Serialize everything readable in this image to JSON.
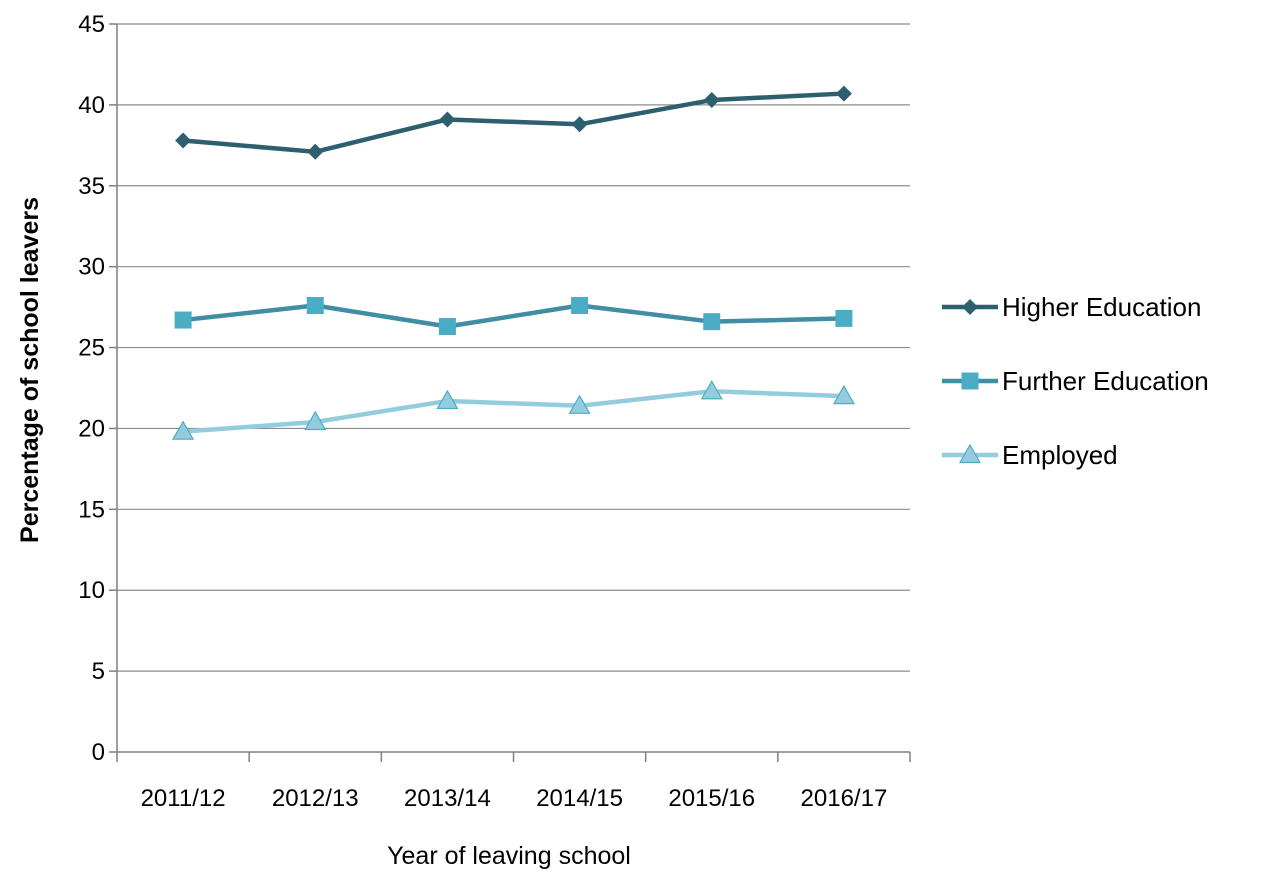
{
  "chart_data": {
    "type": "line",
    "title": "",
    "xlabel": "Year of leaving school",
    "ylabel": "Percentage of school leavers",
    "categories": [
      "2011/12",
      "2012/13",
      "2013/14",
      "2014/15",
      "2015/16",
      "2016/17"
    ],
    "ylim": [
      0,
      45
    ],
    "yticks": [
      "0",
      "5",
      "10",
      "15",
      "20",
      "25",
      "30",
      "35",
      "40",
      "45"
    ],
    "grid": true,
    "legend_position": "right",
    "series": [
      {
        "name": "Higher Education",
        "values": [
          37.8,
          37.1,
          39.1,
          38.8,
          40.3,
          40.7
        ],
        "color": "#2d5f6e",
        "marker": "diamond"
      },
      {
        "name": "Further Education",
        "values": [
          26.7,
          27.6,
          26.3,
          27.6,
          26.6,
          26.8
        ],
        "color": "#3f8ea3",
        "marker": "square",
        "marker_color": "#4bacc6"
      },
      {
        "name": "Employed",
        "values": [
          19.8,
          20.4,
          21.7,
          21.4,
          22.3,
          22.0
        ],
        "color": "#93cddd",
        "marker": "triangle"
      }
    ]
  }
}
